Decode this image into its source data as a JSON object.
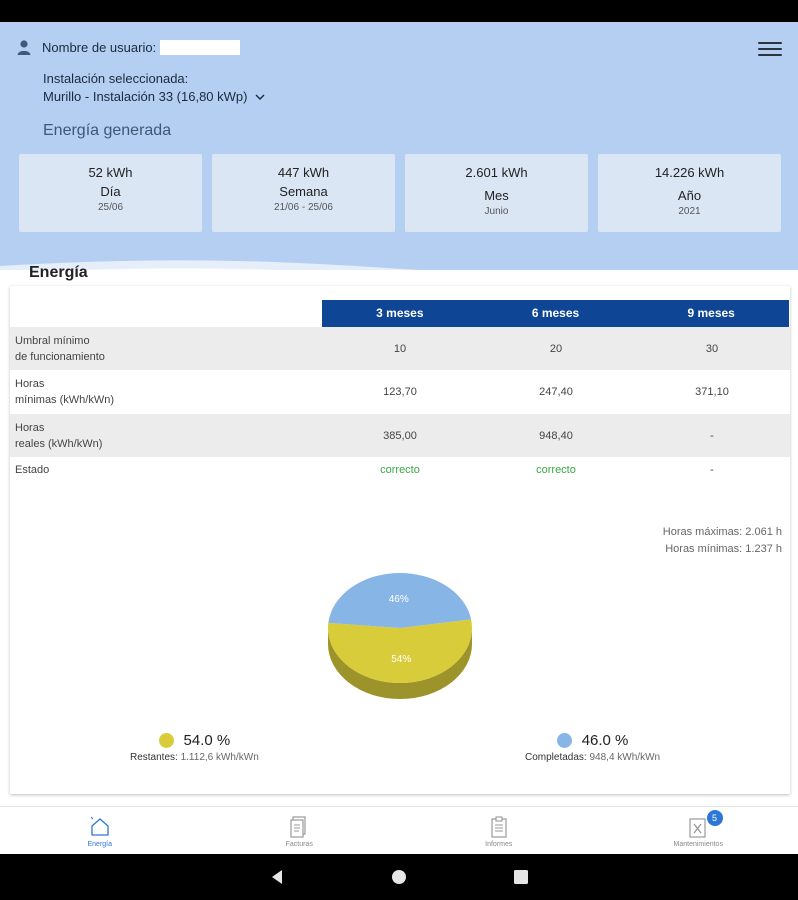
{
  "header": {
    "user_label": "Nombre de usuario:",
    "installation_label": "Instalación seleccionada:",
    "installation_value": "Murillo - Instalación 33 (16,80 kWp)",
    "energy_generated_title": "Energía generada"
  },
  "cards": [
    {
      "value": "52 kWh",
      "label": "Día",
      "sub": "25/06"
    },
    {
      "value": "447 kWh",
      "label": "Semana",
      "sub": "21/06 - 25/06"
    },
    {
      "value": "2.601 kWh",
      "label": "Mes",
      "sub": "Junio"
    },
    {
      "value": "14.226 kWh",
      "label": "Año",
      "sub": "2021"
    }
  ],
  "energy": {
    "title": "Energía",
    "columns": [
      "3 meses",
      "6 meses",
      "9 meses"
    ],
    "rows": [
      {
        "label_1": "Umbral mínimo",
        "label_2": "de funcionamiento",
        "values": [
          "10",
          "20",
          "30"
        ]
      },
      {
        "label_1": "Horas",
        "label_2": "mínimas (kWh/kWn)",
        "values": [
          "123,70",
          "247,40",
          "371,10"
        ]
      },
      {
        "label_1": "Horas",
        "label_2": "reales (kWh/kWn)",
        "values": [
          "385,00",
          "948,40",
          "-"
        ]
      },
      {
        "label_1": "Estado",
        "label_2": "",
        "values": [
          "correcto",
          "correcto",
          "-"
        ]
      }
    ],
    "max_hours": "Horas máximas: 2.061 h",
    "min_hours": "Horas mínimas: 1.237 h"
  },
  "chart_data": {
    "type": "pie",
    "title": "",
    "slices": [
      {
        "label": "Restantes",
        "value": 54.0,
        "slice_label": "54%",
        "color": "#d9cc3a"
      },
      {
        "label": "Completadas",
        "value": 46.0,
        "slice_label": "46%",
        "color": "#87b6e6"
      }
    ]
  },
  "legend": {
    "left_pct": "54.0 %",
    "left_name": "Restantes:",
    "left_value": "1.112,6 kWh/kWn",
    "right_pct": "46.0 %",
    "right_name": "Completadas:",
    "right_value": "948,4 kWh/kWn"
  },
  "bottom_nav": {
    "items": [
      "Energía",
      "Facturas",
      "Informes",
      "Mantenimientos"
    ],
    "badge": "5"
  },
  "colors": {
    "hero": "#b4cff2",
    "card": "#dbe6f5",
    "table_header": "#0e4595",
    "ok": "#39a845",
    "accent": "#2c77d6"
  }
}
